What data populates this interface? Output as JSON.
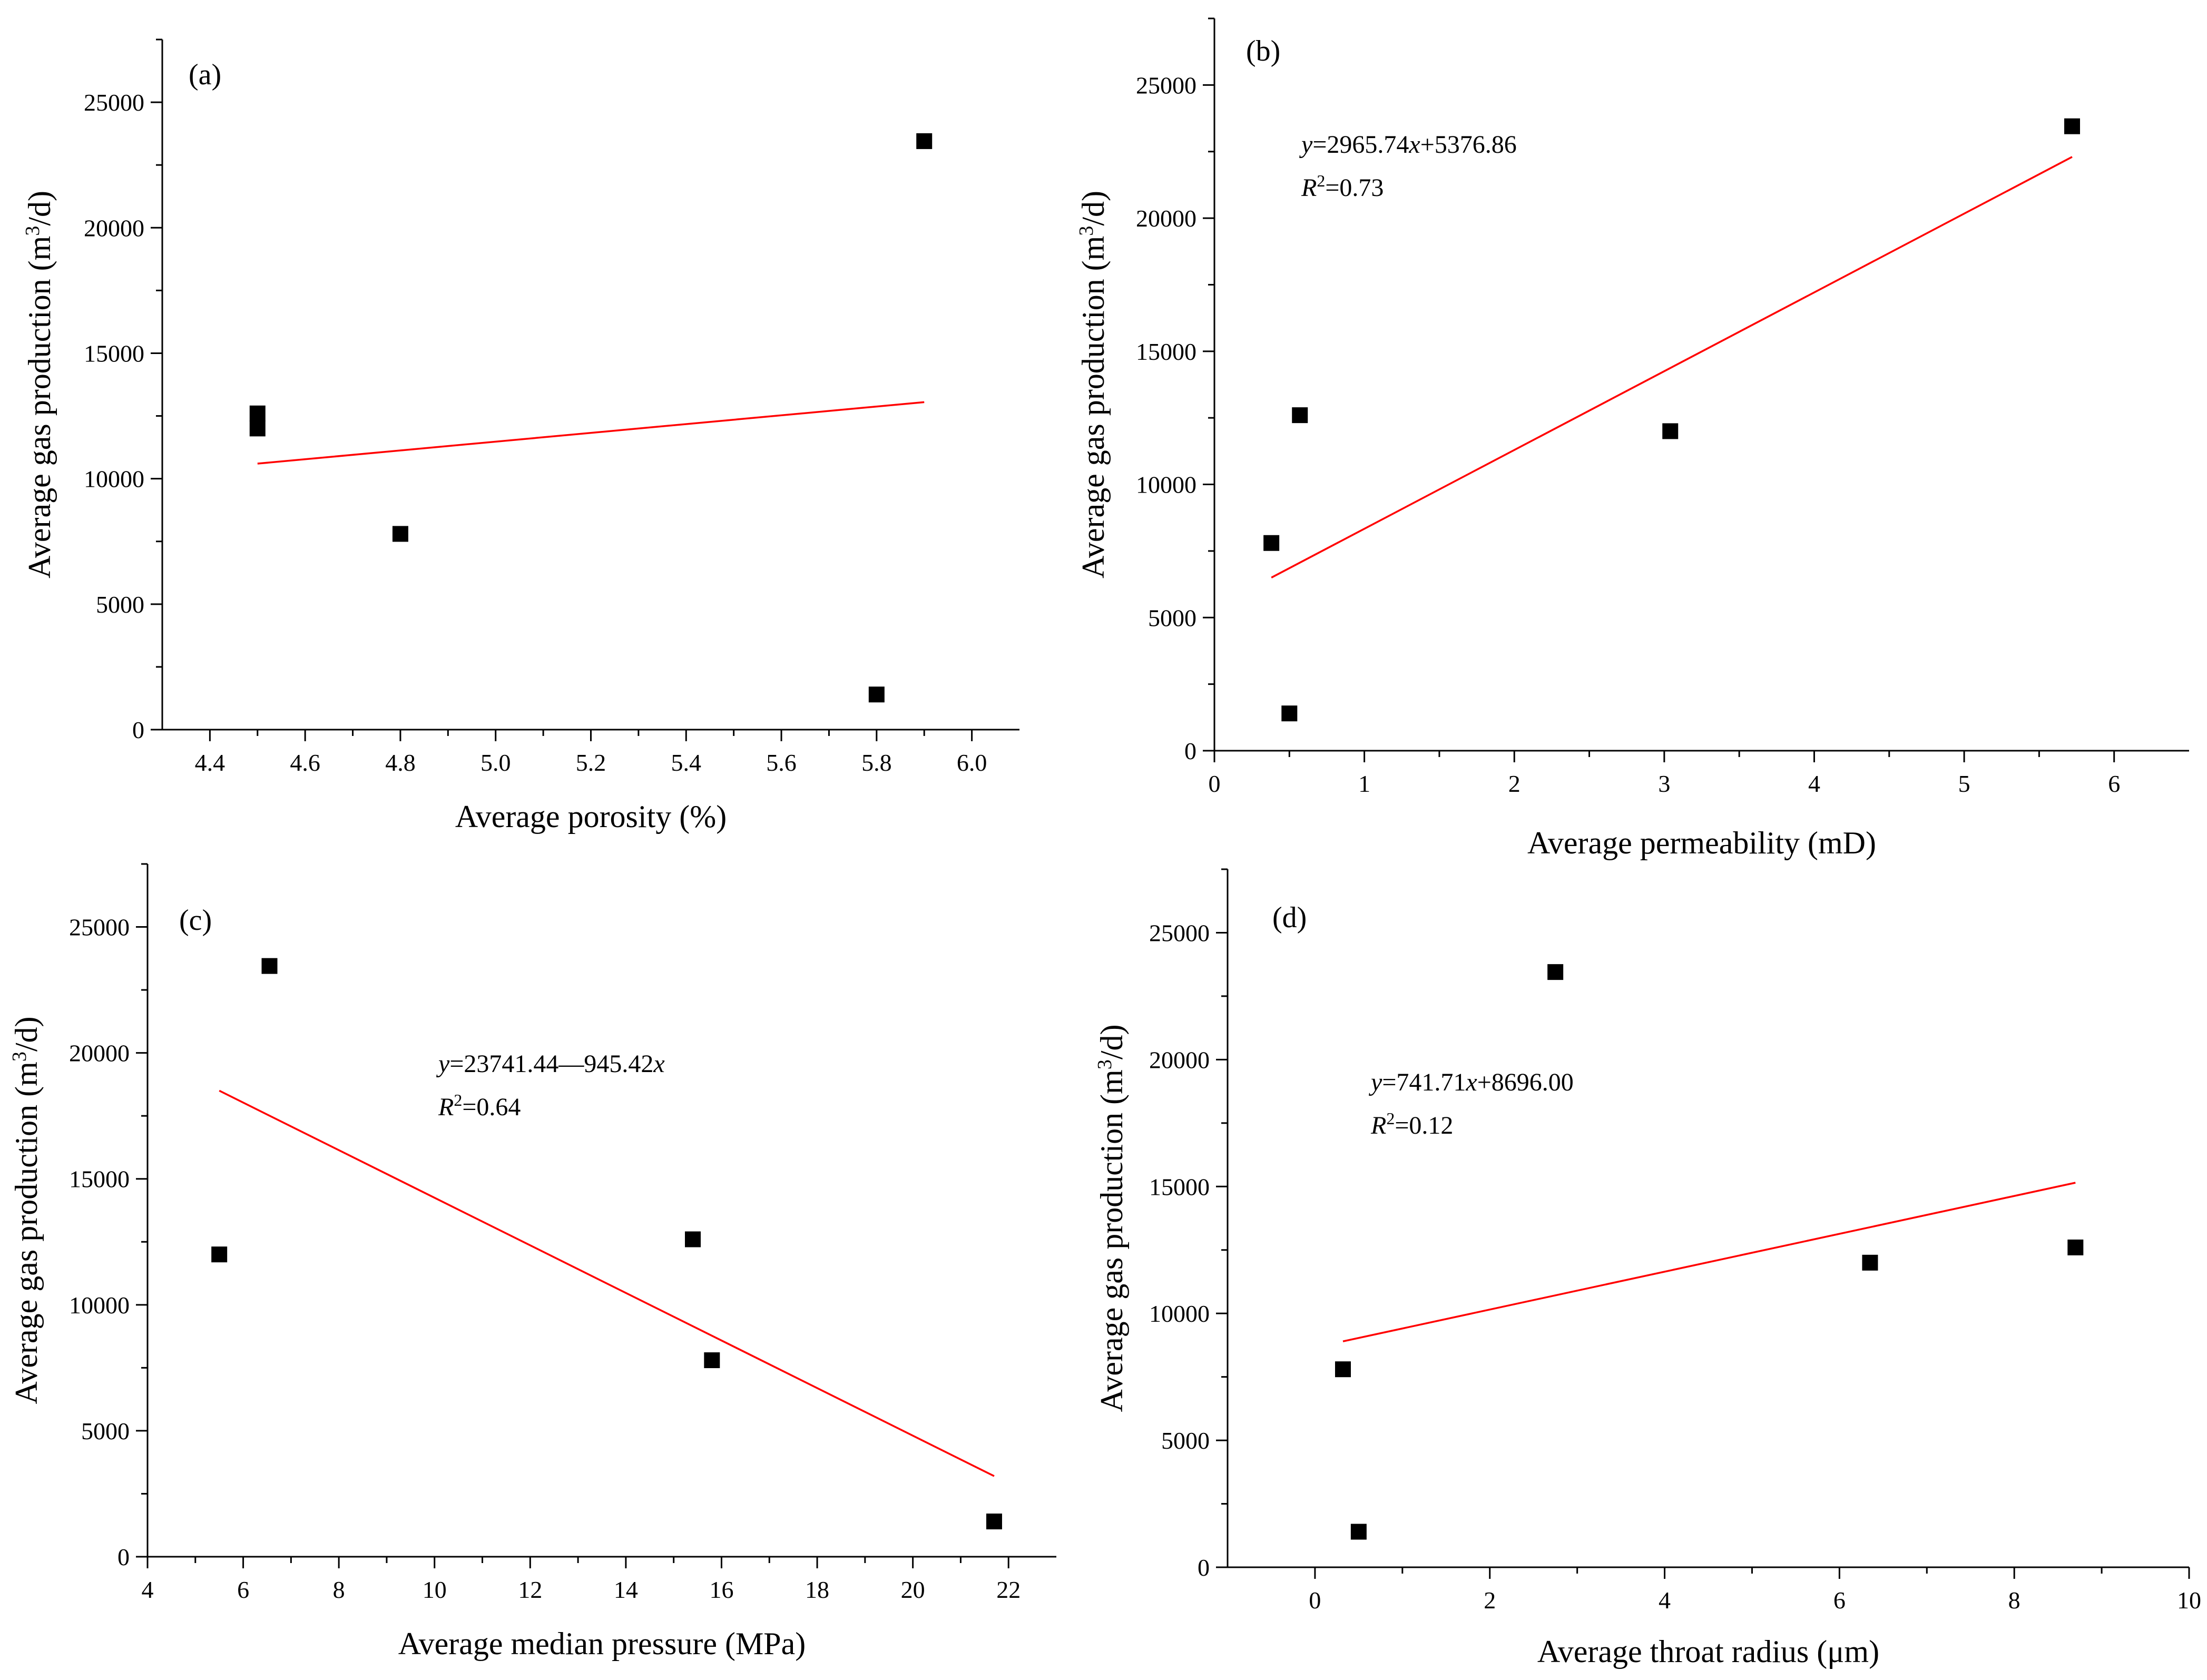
{
  "figure": {
    "background": "#ffffff",
    "marker_color": "#000000",
    "fit_line_color": "#ff0000"
  },
  "chart_data": [
    {
      "id": "a",
      "type": "scatter",
      "panel_label": "(a)",
      "xlabel": "Average porosity (%)",
      "ylabel_parts": [
        "Average gas production (m",
        "3",
        "/d)"
      ],
      "xlim": [
        4.3,
        6.1
      ],
      "ylim": [
        0,
        27500
      ],
      "xticks": [
        4.4,
        4.6,
        4.8,
        5.0,
        5.2,
        5.4,
        5.6,
        5.8,
        6.0
      ],
      "xtick_labels": [
        "4.4",
        "4.6",
        "4.8",
        "5.0",
        "5.2",
        "5.4",
        "5.6",
        "5.8",
        "6.0"
      ],
      "yticks": [
        0,
        5000,
        10000,
        15000,
        20000,
        25000
      ],
      "ytick_labels": [
        "0",
        "5000",
        "10000",
        "15000",
        "20000",
        "25000"
      ],
      "points": [
        {
          "x": 4.5,
          "y": 12600
        },
        {
          "x": 4.5,
          "y": 12000
        },
        {
          "x": 4.8,
          "y": 7800
        },
        {
          "x": 5.8,
          "y": 1400
        },
        {
          "x": 5.9,
          "y": 23450
        }
      ],
      "fit": {
        "x": [
          4.5,
          5.9
        ],
        "y": [
          10600,
          13050
        ]
      },
      "equation": null
    },
    {
      "id": "b",
      "type": "scatter",
      "panel_label": "(b)",
      "xlabel": "Average permeability (mD)",
      "ylabel_parts": [
        "Average gas production (m",
        "3",
        "/d)"
      ],
      "xlim": [
        0,
        6.5
      ],
      "ylim": [
        0,
        27500
      ],
      "xticks": [
        0,
        1,
        2,
        3,
        4,
        5,
        6
      ],
      "xtick_labels": [
        "0",
        "1",
        "2",
        "3",
        "4",
        "5",
        "6"
      ],
      "yticks": [
        0,
        5000,
        10000,
        15000,
        20000,
        25000
      ],
      "ytick_labels": [
        "0",
        "5000",
        "10000",
        "15000",
        "20000",
        "25000"
      ],
      "points": [
        {
          "x": 0.38,
          "y": 7800
        },
        {
          "x": 0.5,
          "y": 1400
        },
        {
          "x": 0.57,
          "y": 12600
        },
        {
          "x": 3.04,
          "y": 12000
        },
        {
          "x": 5.72,
          "y": 23450
        }
      ],
      "fit": {
        "x": [
          0.38,
          5.72
        ],
        "y": [
          6500,
          22300
        ]
      },
      "equation": {
        "y_var": "y",
        "rhs": "=2965.74",
        "x_var": "x",
        "tail": "+5376.86",
        "r_var": "R",
        "r_exp": "2",
        "r_value": "=0.73"
      }
    },
    {
      "id": "c",
      "type": "scatter",
      "panel_label": "(c)",
      "xlabel": "Average median pressure (MPa)",
      "ylabel_parts": [
        "Average gas production (m",
        "3",
        "/d)"
      ],
      "xlim": [
        4,
        23
      ],
      "ylim": [
        0,
        27500
      ],
      "xticks": [
        4,
        6,
        8,
        10,
        12,
        14,
        16,
        18,
        20,
        22
      ],
      "xtick_labels": [
        "4",
        "6",
        "8",
        "10",
        "12",
        "14",
        "16",
        "18",
        "20",
        "22"
      ],
      "yticks": [
        0,
        5000,
        10000,
        15000,
        20000,
        25000
      ],
      "ytick_labels": [
        "0",
        "5000",
        "10000",
        "15000",
        "20000",
        "25000"
      ],
      "points": [
        {
          "x": 5.5,
          "y": 12000
        },
        {
          "x": 6.55,
          "y": 23450
        },
        {
          "x": 15.4,
          "y": 12600
        },
        {
          "x": 15.8,
          "y": 7800
        },
        {
          "x": 21.7,
          "y": 1400
        }
      ],
      "fit": {
        "x": [
          5.5,
          21.7
        ],
        "y": [
          18500,
          3200
        ]
      },
      "equation": {
        "y_var": "y",
        "rhs": "=23741.44—945.42",
        "x_var": "x",
        "tail": "",
        "r_var": "R",
        "r_exp": "2",
        "r_value": "=0.64"
      }
    },
    {
      "id": "d",
      "type": "scatter",
      "panel_label": "(d)",
      "xlabel": "Average throat radius (μm)",
      "ylabel_parts": [
        "Average gas production (m",
        "3",
        "/d)"
      ],
      "xlim": [
        -1,
        10
      ],
      "ylim": [
        0,
        27500
      ],
      "xticks": [
        0,
        2,
        4,
        6,
        8,
        10
      ],
      "xtick_labels": [
        "0",
        "2",
        "4",
        "6",
        "8",
        "10"
      ],
      "yticks": [
        0,
        5000,
        10000,
        15000,
        20000,
        25000
      ],
      "ytick_labels": [
        "0",
        "5000",
        "10000",
        "15000",
        "20000",
        "25000"
      ],
      "points": [
        {
          "x": 0.32,
          "y": 7800
        },
        {
          "x": 0.5,
          "y": 1400
        },
        {
          "x": 2.75,
          "y": 23450
        },
        {
          "x": 6.35,
          "y": 12000
        },
        {
          "x": 8.7,
          "y": 12600
        }
      ],
      "fit": {
        "x": [
          0.32,
          8.7
        ],
        "y": [
          8900,
          15150
        ]
      },
      "equation": {
        "y_var": "y",
        "rhs": "=741.71",
        "x_var": "x",
        "tail": "+8696.00",
        "r_var": "R",
        "r_exp": "2",
        "r_value": "=0.12"
      }
    }
  ]
}
